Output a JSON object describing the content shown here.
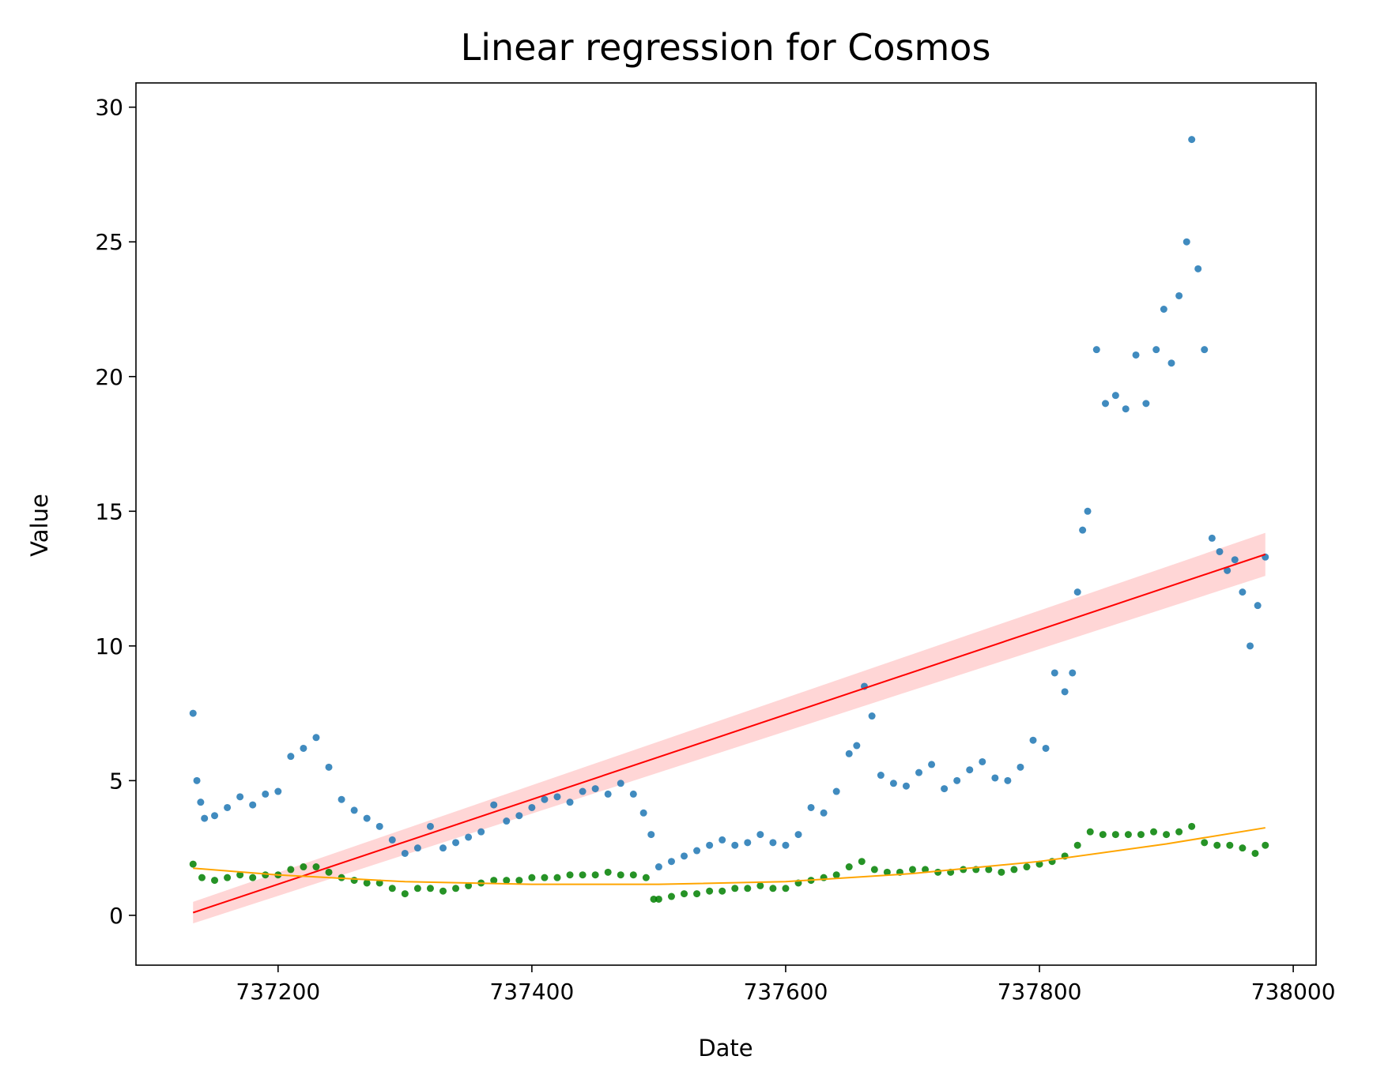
{
  "chart_data": {
    "type": "scatter",
    "title": "Linear regression for Cosmos",
    "xlabel": "Date",
    "ylabel": "Value",
    "xlim": [
      737088,
      738018
    ],
    "ylim": [
      -1.85,
      30.9
    ],
    "x_ticks": [
      737200,
      737400,
      737600,
      737800,
      738000
    ],
    "x_tick_labels": [
      "737200",
      "737400",
      "737600",
      "737800",
      "738000"
    ],
    "y_ticks": [
      0,
      5,
      10,
      15,
      20,
      25,
      30
    ],
    "y_tick_labels": [
      "0",
      "5",
      "10",
      "15",
      "20",
      "25",
      "30"
    ],
    "grid": false,
    "colors": {
      "scatter_blue": "#1f77b4",
      "scatter_green": "#008000",
      "regression_line": "#ff0000",
      "confidence_band": "#ffcccc",
      "poly_fit": "#ffa500"
    },
    "series": [
      {
        "kind": "scatter",
        "color": "#1f77b4",
        "x": [
          737133,
          737136,
          737139,
          737142,
          737150,
          737160,
          737170,
          737180,
          737190,
          737200,
          737210,
          737220,
          737230,
          737240,
          737250,
          737260,
          737270,
          737280,
          737290,
          737300,
          737310,
          737320,
          737330,
          737340,
          737350,
          737360,
          737370,
          737380,
          737390,
          737400,
          737410,
          737420,
          737430,
          737440,
          737450,
          737460,
          737470,
          737480,
          737488,
          737494,
          737500,
          737510,
          737520,
          737530,
          737540,
          737550,
          737560,
          737570,
          737580,
          737590,
          737600,
          737610,
          737620,
          737630,
          737640,
          737650,
          737656,
          737662,
          737668,
          737675,
          737685,
          737695,
          737705,
          737715,
          737725,
          737735,
          737745,
          737755,
          737765,
          737775,
          737785,
          737795,
          737805,
          737812,
          737820,
          737826,
          737830,
          737834,
          737838,
          737845,
          737852,
          737860,
          737868,
          737876,
          737884,
          737892,
          737898,
          737904,
          737910,
          737916,
          737920,
          737925,
          737930,
          737936,
          737942,
          737948,
          737954,
          737960,
          737966,
          737972,
          737978
        ],
        "y": [
          7.5,
          5.0,
          4.2,
          3.6,
          3.7,
          4.0,
          4.4,
          4.1,
          4.5,
          4.6,
          5.9,
          6.2,
          6.6,
          5.5,
          4.3,
          3.9,
          3.6,
          3.3,
          2.8,
          2.3,
          2.5,
          3.3,
          2.5,
          2.7,
          2.9,
          3.1,
          4.1,
          3.5,
          3.7,
          4.0,
          4.3,
          4.4,
          4.2,
          4.6,
          4.7,
          4.5,
          4.9,
          4.5,
          3.8,
          3.0,
          1.8,
          2.0,
          2.2,
          2.4,
          2.6,
          2.8,
          2.6,
          2.7,
          3.0,
          2.7,
          2.6,
          3.0,
          4.0,
          3.8,
          4.6,
          6.0,
          6.3,
          8.5,
          7.4,
          5.2,
          4.9,
          4.8,
          5.3,
          5.6,
          4.7,
          5.0,
          5.4,
          5.7,
          5.1,
          5.0,
          5.5,
          6.5,
          6.2,
          9.0,
          8.3,
          9.0,
          12.0,
          14.3,
          15.0,
          21.0,
          19.0,
          19.3,
          18.8,
          20.8,
          19.0,
          21.0,
          22.5,
          20.5,
          23.0,
          25.0,
          28.8,
          24.0,
          21.0,
          14.0,
          13.5,
          12.8,
          13.2,
          12.0,
          10.0,
          11.5,
          13.3
        ]
      },
      {
        "kind": "scatter",
        "color": "#008000",
        "x": [
          737133,
          737140,
          737150,
          737160,
          737170,
          737180,
          737190,
          737200,
          737210,
          737220,
          737230,
          737240,
          737250,
          737260,
          737270,
          737280,
          737290,
          737300,
          737310,
          737320,
          737330,
          737340,
          737350,
          737360,
          737370,
          737380,
          737390,
          737400,
          737410,
          737420,
          737430,
          737440,
          737450,
          737460,
          737470,
          737480,
          737490,
          737496,
          737500,
          737510,
          737520,
          737530,
          737540,
          737550,
          737560,
          737570,
          737580,
          737590,
          737600,
          737610,
          737620,
          737630,
          737640,
          737650,
          737660,
          737670,
          737680,
          737690,
          737700,
          737710,
          737720,
          737730,
          737740,
          737750,
          737760,
          737770,
          737780,
          737790,
          737800,
          737810,
          737820,
          737830,
          737840,
          737850,
          737860,
          737870,
          737880,
          737890,
          737900,
          737910,
          737920,
          737930,
          737940,
          737950,
          737960,
          737970,
          737978
        ],
        "y": [
          1.9,
          1.4,
          1.3,
          1.4,
          1.5,
          1.4,
          1.5,
          1.5,
          1.7,
          1.8,
          1.8,
          1.6,
          1.4,
          1.3,
          1.2,
          1.2,
          1.0,
          0.8,
          1.0,
          1.0,
          0.9,
          1.0,
          1.1,
          1.2,
          1.3,
          1.3,
          1.3,
          1.4,
          1.4,
          1.4,
          1.5,
          1.5,
          1.5,
          1.6,
          1.5,
          1.5,
          1.4,
          0.6,
          0.6,
          0.7,
          0.8,
          0.8,
          0.9,
          0.9,
          1.0,
          1.0,
          1.1,
          1.0,
          1.0,
          1.2,
          1.3,
          1.4,
          1.5,
          1.8,
          2.0,
          1.7,
          1.6,
          1.6,
          1.7,
          1.7,
          1.6,
          1.6,
          1.7,
          1.7,
          1.7,
          1.6,
          1.7,
          1.8,
          1.9,
          2.0,
          2.2,
          2.6,
          3.1,
          3.0,
          3.0,
          3.0,
          3.0,
          3.1,
          3.0,
          3.1,
          3.3,
          2.7,
          2.6,
          2.6,
          2.5,
          2.3,
          2.6
        ]
      },
      {
        "kind": "line",
        "color": "#ff0000",
        "x": [
          737133,
          737978
        ],
        "y": [
          0.1,
          13.4
        ]
      },
      {
        "kind": "band",
        "color": "#ffcccc",
        "x": [
          737133,
          737978
        ],
        "y_lower": [
          -0.3,
          12.6
        ],
        "y_upper": [
          0.5,
          14.2
        ]
      },
      {
        "kind": "line",
        "color": "#ffa500",
        "x": [
          737133,
          737200,
          737300,
          737400,
          737500,
          737600,
          737700,
          737800,
          737900,
          737978
        ],
        "y": [
          1.75,
          1.5,
          1.25,
          1.15,
          1.15,
          1.25,
          1.55,
          2.0,
          2.65,
          3.25
        ]
      }
    ]
  }
}
